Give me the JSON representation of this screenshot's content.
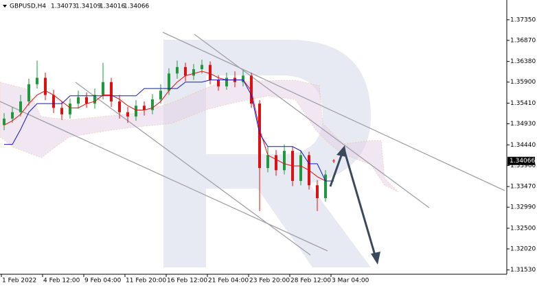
{
  "chart_data": {
    "type": "candlestick",
    "title": "GBPUSD,H4",
    "categories": [
      "1 Feb 2022",
      null,
      null,
      null,
      null,
      "4 Feb 12:00",
      null,
      null,
      null,
      null,
      "9 Feb 04:00",
      null,
      null,
      null,
      null,
      "11 Feb 20:00",
      null,
      null,
      null,
      null,
      "16 Feb 12:00",
      null,
      null,
      null,
      null,
      "21 Feb 04:00",
      null,
      null,
      null,
      null,
      "23 Feb 20:00",
      null,
      null,
      null,
      null,
      "28 Feb 12:00",
      null,
      null,
      null,
      null,
      "3 Mar 04:00"
    ],
    "open": [
      1.349,
      1.3505,
      1.352,
      1.3545,
      1.3585,
      1.36,
      1.356,
      1.353,
      1.3515,
      1.354,
      1.3555,
      1.354,
      1.356,
      1.359,
      1.3545,
      1.352,
      1.351,
      1.3535,
      1.3525,
      1.355,
      1.357,
      1.361,
      1.3625,
      1.3605,
      1.362,
      1.363,
      1.3595,
      1.358,
      1.36,
      1.359,
      1.3605,
      1.354,
      1.339,
      1.342,
      1.3385,
      1.343,
      1.336,
      1.342,
      1.335,
      1.332,
      1.34073
    ],
    "high": [
      1.3518,
      1.3532,
      1.356,
      1.3598,
      1.364,
      1.3612,
      1.3572,
      1.3545,
      1.3552,
      1.357,
      1.3566,
      1.3575,
      1.3635,
      1.36,
      1.356,
      1.3532,
      1.3548,
      1.3545,
      1.3562,
      1.3585,
      1.3622,
      1.364,
      1.3635,
      1.3632,
      1.3642,
      1.3638,
      1.3606,
      1.3612,
      1.3615,
      1.3618,
      1.3612,
      1.3548,
      1.344,
      1.3432,
      1.3445,
      1.344,
      1.3432,
      1.3428,
      1.3362,
      1.3385,
      1.34109
    ],
    "low": [
      1.3478,
      1.3495,
      1.351,
      1.3535,
      1.3575,
      1.3548,
      1.3518,
      1.3502,
      1.3505,
      1.3528,
      1.353,
      1.3528,
      1.355,
      1.3532,
      1.3505,
      1.3495,
      1.35,
      1.3512,
      1.3515,
      1.354,
      1.356,
      1.3598,
      1.3592,
      1.3595,
      1.361,
      1.3585,
      1.357,
      1.3572,
      1.3578,
      1.358,
      1.353,
      1.329,
      1.338,
      1.3372,
      1.3375,
      1.3348,
      1.335,
      1.334,
      1.329,
      1.3312,
      1.34016
    ],
    "close": [
      1.3505,
      1.352,
      1.3545,
      1.3585,
      1.36,
      1.356,
      1.353,
      1.3515,
      1.354,
      1.3555,
      1.354,
      1.356,
      1.359,
      1.3545,
      1.352,
      1.351,
      1.3535,
      1.3525,
      1.355,
      1.357,
      1.361,
      1.3625,
      1.3605,
      1.362,
      1.363,
      1.3595,
      1.358,
      1.36,
      1.359,
      1.3605,
      1.354,
      1.339,
      1.342,
      1.3385,
      1.343,
      1.336,
      1.342,
      1.335,
      1.332,
      1.3375,
      1.34066
    ],
    "up_color": "#1e9a3c",
    "down_color": "#dd1111",
    "indicators": [
      {
        "color": "#e01010",
        "values": [
          1.349,
          1.35,
          1.3515,
          1.354,
          1.356,
          1.357,
          1.356,
          1.3545,
          1.353,
          1.353,
          1.354,
          1.3545,
          1.356,
          1.356,
          1.355,
          1.3535,
          1.3525,
          1.3525,
          1.353,
          1.3545,
          1.357,
          1.359,
          1.3605,
          1.361,
          1.3615,
          1.361,
          1.36,
          1.3595,
          1.3595,
          1.3595,
          1.357,
          1.348,
          1.342,
          1.341,
          1.34,
          1.3395,
          1.3395,
          1.3385,
          1.337,
          1.336,
          1.336
        ]
      },
      {
        "color": "#1414d0",
        "values": [
          1.3445,
          1.3445,
          1.348,
          1.352,
          1.354,
          1.354,
          1.354,
          1.354,
          1.3558,
          1.3558,
          1.3558,
          1.3558,
          1.3558,
          1.3558,
          1.3558,
          1.3558,
          1.3558,
          1.3575,
          1.3575,
          1.3575,
          1.3575,
          1.3575,
          1.359,
          1.359,
          1.359,
          1.3595,
          1.3595,
          1.3595,
          1.3595,
          1.3595,
          1.356,
          1.347,
          1.344,
          1.344,
          1.344,
          1.344,
          1.343,
          1.34,
          1.34,
          1.336,
          1.336
        ]
      }
    ],
    "ylim": [
      1.3143,
      1.3781
    ],
    "yticks": [
      {
        "value": 1.3735,
        "label": "1.37350"
      },
      {
        "value": 1.3687,
        "label": "1.36870"
      },
      {
        "value": 1.3638,
        "label": "1.36380"
      },
      {
        "value": 1.359,
        "label": "1.35900"
      },
      {
        "value": 1.3541,
        "label": "1.35410"
      },
      {
        "value": 1.3493,
        "label": "1.34930"
      },
      {
        "value": 1.3444,
        "label": "1.34440"
      },
      {
        "value": 1.3396,
        "label": "1.33960"
      },
      {
        "value": 1.3347,
        "label": "1.33470"
      },
      {
        "value": 1.3299,
        "label": "1.32990"
      },
      {
        "value": 1.325,
        "label": "1.32500"
      },
      {
        "value": 1.3202,
        "label": "1.32020"
      },
      {
        "value": 1.3153,
        "label": "1.31530"
      }
    ]
  }
}
